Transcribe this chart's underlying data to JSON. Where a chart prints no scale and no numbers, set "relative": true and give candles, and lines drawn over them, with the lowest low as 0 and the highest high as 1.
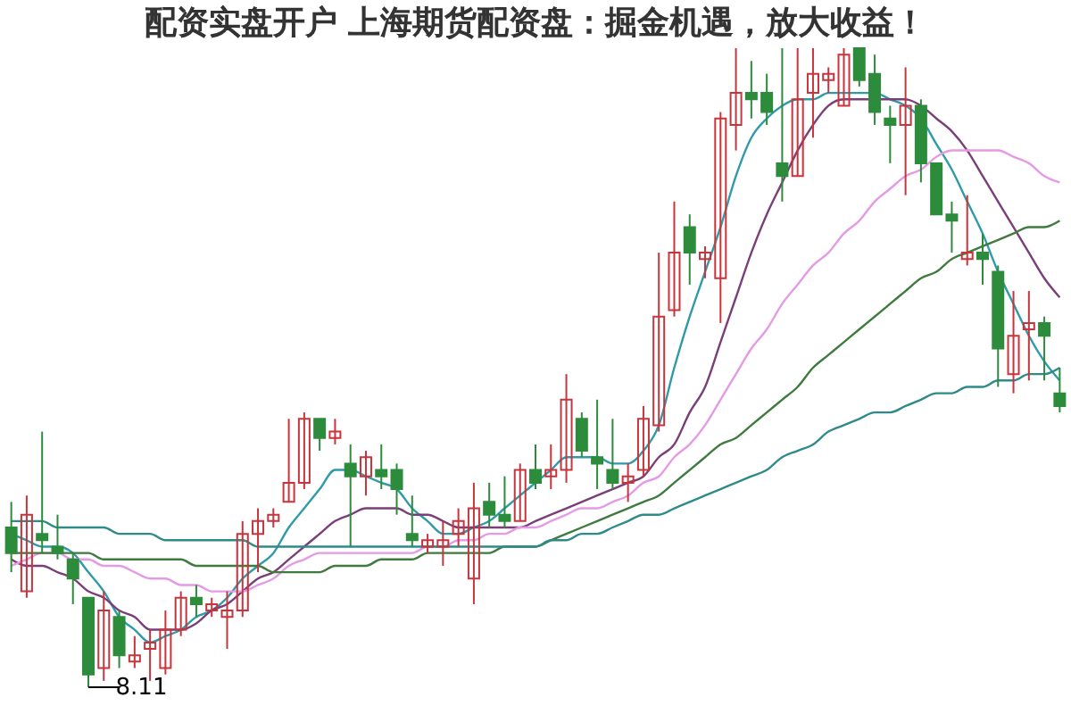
{
  "chart_data": {
    "type": "candlestick",
    "title": "配资实盘开户 上海期货配资盘：掘金机遇，放大收益！",
    "relative": true,
    "categories": [
      null,
      null,
      null,
      null,
      null,
      null,
      null,
      null,
      null,
      null,
      null,
      null,
      null,
      null,
      null,
      null,
      null,
      null,
      null,
      null,
      null,
      null,
      null,
      null,
      null,
      null,
      null,
      null,
      null,
      null,
      null,
      null,
      null,
      null,
      null,
      null,
      null,
      null,
      null,
      null,
      null,
      null,
      null,
      null,
      null,
      null,
      null,
      null,
      null,
      null,
      null,
      null,
      null,
      null,
      null,
      null,
      null,
      null,
      null,
      null,
      null,
      null,
      null,
      null,
      null,
      null,
      null,
      null,
      null
    ],
    "ohlc": [
      [
        0.25,
        0.29,
        0.18,
        0.21
      ],
      [
        0.15,
        0.3,
        0.14,
        0.27
      ],
      [
        0.24,
        0.4,
        0.21,
        0.23
      ],
      [
        0.22,
        0.27,
        0.2,
        0.21
      ],
      [
        0.2,
        0.21,
        0.13,
        0.17
      ],
      [
        0.14,
        0.14,
        0,
        0.02
      ],
      [
        0.03,
        0.15,
        0.01,
        0.12
      ],
      [
        0.11,
        0.12,
        0.03,
        0.05
      ],
      [
        0.04,
        0.08,
        0.03,
        0.05
      ],
      [
        0.06,
        0.09,
        0.01,
        0.07
      ],
      [
        0.03,
        0.12,
        0.02,
        0.09
      ],
      [
        0.09,
        0.15,
        0.08,
        0.14
      ],
      [
        0.14,
        0.16,
        0.11,
        0.13
      ],
      [
        0.12,
        0.14,
        0.11,
        0.13
      ],
      [
        0.11,
        0.15,
        0.06,
        0.12
      ],
      [
        0.12,
        0.26,
        0.11,
        0.24
      ],
      [
        0.24,
        0.28,
        0.18,
        0.26
      ],
      [
        0.26,
        0.28,
        0.25,
        0.27
      ],
      [
        0.29,
        0.42,
        0.29,
        0.32
      ],
      [
        0.32,
        0.43,
        0.31,
        0.42
      ],
      [
        0.42,
        0.42,
        0.37,
        0.39
      ],
      [
        0.39,
        0.42,
        0.38,
        0.4
      ],
      [
        0.35,
        0.38,
        0.22,
        0.33
      ],
      [
        0.33,
        0.37,
        0.3,
        0.36
      ],
      [
        0.34,
        0.38,
        0.31,
        0.33
      ],
      [
        0.34,
        0.35,
        0.27,
        0.31
      ],
      [
        0.24,
        0.3,
        0.22,
        0.23
      ],
      [
        0.22,
        0.24,
        0.21,
        0.23
      ],
      [
        0.22,
        0.26,
        0.19,
        0.23
      ],
      [
        0.24,
        0.28,
        0.22,
        0.26
      ],
      [
        0.17,
        0.32,
        0.13,
        0.28
      ],
      [
        0.29,
        0.32,
        0.25,
        0.27
      ],
      [
        0.27,
        0.33,
        0.25,
        0.26
      ],
      [
        0.26,
        0.35,
        0.26,
        0.34
      ],
      [
        0.34,
        0.38,
        0.31,
        0.32
      ],
      [
        0.33,
        0.38,
        0.31,
        0.34
      ],
      [
        0.34,
        0.49,
        0.32,
        0.45
      ],
      [
        0.42,
        0.43,
        0.36,
        0.37
      ],
      [
        0.36,
        0.45,
        0.31,
        0.35
      ],
      [
        0.34,
        0.42,
        0.31,
        0.32
      ],
      [
        0.32,
        0.35,
        0.29,
        0.33
      ],
      [
        0.34,
        0.44,
        0.33,
        0.42
      ],
      [
        0.41,
        0.68,
        0.4,
        0.58
      ],
      [
        0.59,
        0.76,
        0.58,
        0.68
      ],
      [
        0.72,
        0.74,
        0.63,
        0.68
      ],
      [
        0.67,
        0.69,
        0.64,
        0.68
      ],
      [
        0.64,
        0.9,
        0.57,
        0.89
      ],
      [
        0.88,
        1,
        0.84,
        0.93
      ],
      [
        0.93,
        0.98,
        0.89,
        0.92
      ],
      [
        0.93,
        0.96,
        0.88,
        0.9
      ],
      [
        0.82,
        1,
        0.76,
        0.8
      ],
      [
        0.8,
        1,
        0.8,
        0.92
      ],
      [
        0.93,
        1,
        0.86,
        0.96
      ],
      [
        0.95,
        0.97,
        0.93,
        0.96
      ],
      [
        0.91,
        1,
        0.91,
        0.99
      ],
      [
        1,
        1,
        0.94,
        0.95
      ],
      [
        0.96,
        0.99,
        0.88,
        0.9
      ],
      [
        0.89,
        0.91,
        0.82,
        0.88
      ],
      [
        0.88,
        0.97,
        0.77,
        0.91
      ],
      [
        0.91,
        0.92,
        0.79,
        0.82
      ],
      [
        0.82,
        0.82,
        0.74,
        0.74
      ],
      [
        0.74,
        0.76,
        0.68,
        0.73
      ],
      [
        0.67,
        0.77,
        0.66,
        0.68
      ],
      [
        0.68,
        0.71,
        0.63,
        0.67
      ],
      [
        0.65,
        0.66,
        0.47,
        0.53
      ],
      [
        0.49,
        0.62,
        0.46,
        0.55
      ],
      [
        0.56,
        0.62,
        0.48,
        0.57
      ],
      [
        0.57,
        0.58,
        0.48,
        0.55
      ],
      [
        0.46,
        0.5,
        0.43,
        0.44
      ]
    ],
    "colors": [
      "#2c8c3c",
      "#c8343c",
      "#2c8c3c",
      "#2c8c3c",
      "#2c8c3c",
      "#2c8c3c",
      "#c8343c",
      "#2c8c3c",
      "#c8343c",
      "#c8343c",
      "#c8343c",
      "#c8343c",
      "#2c8c3c",
      "#c8343c",
      "#c8343c",
      "#c8343c",
      "#c8343c",
      "#c8343c",
      "#c8343c",
      "#c8343c",
      "#2c8c3c",
      "#c8343c",
      "#2c8c3c",
      "#c8343c",
      "#2c8c3c",
      "#2c8c3c",
      "#2c8c3c",
      "#c8343c",
      "#c8343c",
      "#c8343c",
      "#c8343c",
      "#2c8c3c",
      "#2c8c3c",
      "#c8343c",
      "#2c8c3c",
      "#c8343c",
      "#c8343c",
      "#2c8c3c",
      "#2c8c3c",
      "#2c8c3c",
      "#c8343c",
      "#c8343c",
      "#c8343c",
      "#c8343c",
      "#2c8c3c",
      "#c8343c",
      "#c8343c",
      "#c8343c",
      "#2c8c3c",
      "#2c8c3c",
      "#2c8c3c",
      "#c8343c",
      "#c8343c",
      "#c8343c",
      "#c8343c",
      "#2c8c3c",
      "#2c8c3c",
      "#2c8c3c",
      "#c8343c",
      "#2c8c3c",
      "#2c8c3c",
      "#2c8c3c",
      "#c8343c",
      "#2c8c3c",
      "#2c8c3c",
      "#c8343c",
      "#c8343c",
      "#2c8c3c",
      "#2c8c3c"
    ],
    "series": [
      {
        "type": "line",
        "color": "#2f9aa8",
        "values": [
          0.24,
          0.23,
          0.22,
          0.22,
          0.21,
          0.18,
          0.15,
          0.11,
          0.09,
          0.07,
          0.08,
          0.09,
          0.11,
          0.12,
          0.14,
          0.17,
          0.19,
          0.21,
          0.25,
          0.28,
          0.31,
          0.34,
          0.34,
          0.33,
          0.32,
          0.31,
          0.28,
          0.26,
          0.24,
          0.24,
          0.25,
          0.26,
          0.28,
          0.3,
          0.32,
          0.34,
          0.36,
          0.36,
          0.36,
          0.35,
          0.35,
          0.37,
          0.41,
          0.5,
          0.58,
          0.65,
          0.72,
          0.8,
          0.86,
          0.89,
          0.91,
          0.92,
          0.92,
          0.93,
          0.93,
          0.93,
          0.93,
          0.92,
          0.91,
          0.89,
          0.85,
          0.81,
          0.76,
          0.71,
          0.65,
          0.6,
          0.55,
          0.51,
          0.48
        ]
      },
      {
        "type": "line",
        "color": "#7a3f78",
        "values": [
          0.2,
          0.19,
          0.19,
          0.18,
          0.17,
          0.15,
          0.14,
          0.12,
          0.11,
          0.09,
          0.09,
          0.09,
          0.1,
          0.12,
          0.13,
          0.15,
          0.17,
          0.18,
          0.2,
          0.22,
          0.24,
          0.26,
          0.27,
          0.28,
          0.28,
          0.28,
          0.27,
          0.27,
          0.26,
          0.25,
          0.25,
          0.25,
          0.25,
          0.25,
          0.26,
          0.27,
          0.28,
          0.29,
          0.3,
          0.31,
          0.32,
          0.33,
          0.36,
          0.38,
          0.43,
          0.47,
          0.54,
          0.61,
          0.68,
          0.74,
          0.79,
          0.84,
          0.88,
          0.91,
          0.92,
          0.92,
          0.92,
          0.92,
          0.92,
          0.91,
          0.89,
          0.87,
          0.84,
          0.8,
          0.76,
          0.72,
          0.68,
          0.64,
          0.61
        ]
      },
      {
        "type": "line",
        "color": "#e59ae6",
        "values": [
          0.19,
          0.2,
          0.21,
          0.21,
          0.2,
          0.2,
          0.19,
          0.19,
          0.18,
          0.17,
          0.17,
          0.16,
          0.16,
          0.15,
          0.15,
          0.15,
          0.16,
          0.17,
          0.19,
          0.2,
          0.21,
          0.21,
          0.21,
          0.21,
          0.21,
          0.21,
          0.21,
          0.22,
          0.22,
          0.23,
          0.23,
          0.24,
          0.24,
          0.25,
          0.25,
          0.26,
          0.27,
          0.28,
          0.28,
          0.29,
          0.3,
          0.32,
          0.33,
          0.36,
          0.38,
          0.41,
          0.45,
          0.49,
          0.53,
          0.56,
          0.6,
          0.63,
          0.66,
          0.68,
          0.71,
          0.73,
          0.76,
          0.78,
          0.8,
          0.81,
          0.83,
          0.84,
          0.84,
          0.84,
          0.84,
          0.83,
          0.82,
          0.8,
          0.79
        ]
      },
      {
        "type": "line",
        "color": "#3f7a3f",
        "values": [
          0.21,
          0.21,
          0.21,
          0.21,
          0.21,
          0.21,
          0.2,
          0.2,
          0.2,
          0.2,
          0.2,
          0.2,
          0.19,
          0.19,
          0.19,
          0.19,
          0.19,
          0.18,
          0.18,
          0.18,
          0.18,
          0.19,
          0.19,
          0.19,
          0.2,
          0.2,
          0.2,
          0.21,
          0.21,
          0.21,
          0.21,
          0.21,
          0.22,
          0.22,
          0.22,
          0.23,
          0.24,
          0.25,
          0.26,
          0.27,
          0.28,
          0.29,
          0.3,
          0.32,
          0.34,
          0.36,
          0.38,
          0.39,
          0.41,
          0.43,
          0.45,
          0.47,
          0.5,
          0.52,
          0.54,
          0.56,
          0.58,
          0.6,
          0.62,
          0.64,
          0.65,
          0.67,
          0.68,
          0.69,
          0.7,
          0.71,
          0.72,
          0.72,
          0.73
        ]
      },
      {
        "type": "line",
        "color": "#2f8a8a",
        "values": [
          0.26,
          0.26,
          0.26,
          0.25,
          0.25,
          0.25,
          0.25,
          0.24,
          0.24,
          0.24,
          0.23,
          0.23,
          0.23,
          0.23,
          0.23,
          0.23,
          0.22,
          0.22,
          0.22,
          0.22,
          0.22,
          0.22,
          0.22,
          0.22,
          0.22,
          0.22,
          0.22,
          0.22,
          0.22,
          0.22,
          0.22,
          0.22,
          0.22,
          0.22,
          0.22,
          0.23,
          0.23,
          0.24,
          0.24,
          0.25,
          0.26,
          0.27,
          0.27,
          0.28,
          0.29,
          0.3,
          0.31,
          0.32,
          0.33,
          0.34,
          0.36,
          0.37,
          0.38,
          0.4,
          0.41,
          0.42,
          0.43,
          0.43,
          0.44,
          0.45,
          0.46,
          0.46,
          0.47,
          0.47,
          0.48,
          0.48,
          0.49,
          0.49,
          0.5
        ]
      }
    ],
    "annotations": [
      "8.11"
    ]
  }
}
